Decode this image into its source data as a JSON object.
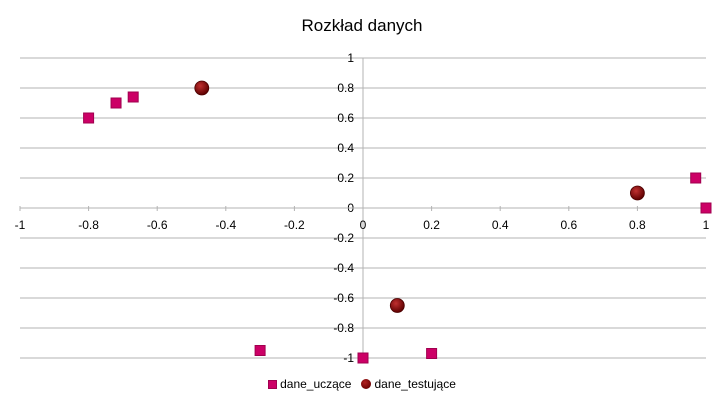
{
  "chart_data": {
    "type": "scatter",
    "title": "Rozkład danych",
    "xlim": [
      -1,
      1
    ],
    "ylim": [
      -1,
      1
    ],
    "x_ticks": [
      "-1",
      "-0.8",
      "-0.6",
      "-0.4",
      "-0.2",
      "0",
      "0.2",
      "0.4",
      "0.6",
      "0.8",
      "1"
    ],
    "y_ticks": [
      "1",
      "0.8",
      "0.6",
      "0.4",
      "0.2",
      "0",
      "-0.2",
      "-0.4",
      "-0.6",
      "-0.8",
      "-1"
    ],
    "grid": "horizontal",
    "legend_position": "bottom",
    "series": [
      {
        "name": "dane_uczące",
        "marker": "square",
        "color": "#cc0066",
        "points": [
          [
            -0.8,
            0.6
          ],
          [
            -0.72,
            0.7
          ],
          [
            -0.67,
            0.74
          ],
          [
            -0.3,
            -0.95
          ],
          [
            0.0,
            -1.0
          ],
          [
            0.2,
            -0.97
          ],
          [
            0.97,
            0.2
          ],
          [
            1.0,
            0.0
          ]
        ]
      },
      {
        "name": "dane_testujące",
        "marker": "circle",
        "color": "#7a0000",
        "points": [
          [
            -0.47,
            0.8
          ],
          [
            0.1,
            -0.65
          ],
          [
            0.8,
            0.1
          ]
        ]
      }
    ]
  }
}
